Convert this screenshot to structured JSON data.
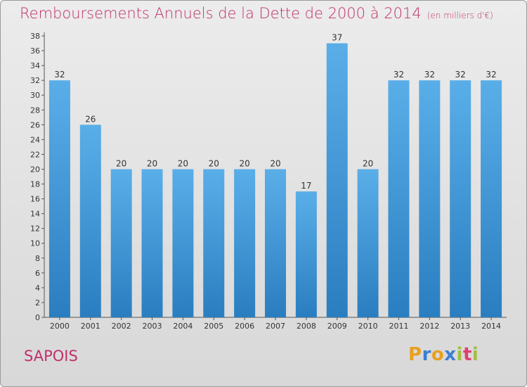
{
  "title": "Remboursements Annuels de la Dette de 2000 à 2014",
  "unit_note": "(en milliers d'€)",
  "commune": "SAPOIS",
  "logo": {
    "letters": [
      "P",
      "r",
      "o",
      "x",
      "i",
      "t",
      "i"
    ],
    "colors": [
      "#e8a020",
      "#3a7fd0",
      "#e8a020",
      "#3a7fd0",
      "#a0c040",
      "#e04070",
      "#a0c040"
    ]
  },
  "colors": {
    "bar_top": "#5aaee8",
    "bar_bottom": "#2a7ec0",
    "title": "#c0306a"
  },
  "chart_data": {
    "type": "bar",
    "title": "Remboursements Annuels de la Dette de 2000 à 2014",
    "categories": [
      "2000",
      "2001",
      "2002",
      "2003",
      "2004",
      "2005",
      "2006",
      "2007",
      "2008",
      "2009",
      "2010",
      "2011",
      "2012",
      "2013",
      "2014"
    ],
    "values": [
      32,
      26,
      20,
      20,
      20,
      20,
      20,
      20,
      17,
      37,
      20,
      32,
      32,
      32,
      32
    ],
    "ylim": [
      0,
      38
    ],
    "yticks": [
      0,
      2,
      4,
      6,
      8,
      10,
      12,
      14,
      16,
      18,
      20,
      22,
      24,
      26,
      28,
      30,
      32,
      34,
      36,
      38
    ],
    "xlabel": "",
    "ylabel": "",
    "grid": false
  }
}
